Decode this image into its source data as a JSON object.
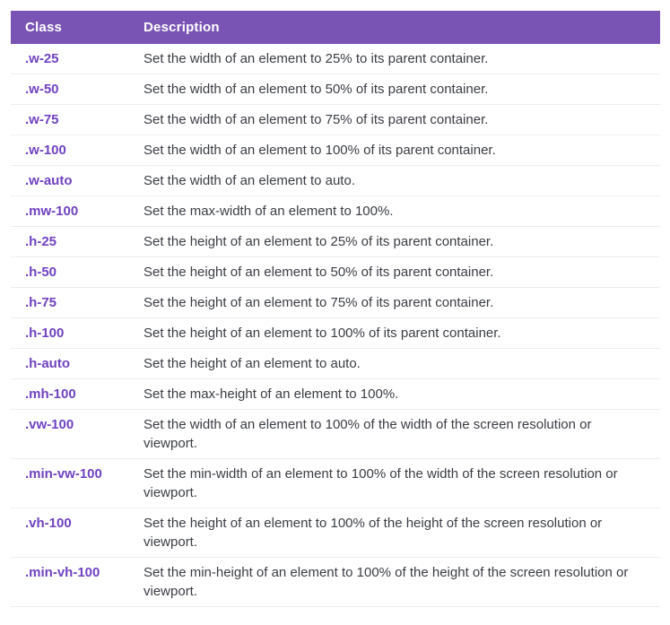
{
  "colors": {
    "header_bg": "#7a54b4",
    "header_text": "#ffffff",
    "class_text": "#6f42c1",
    "description_text": "#3a3d43",
    "divider": "#ebedee"
  },
  "table": {
    "columns": [
      {
        "label": "Class"
      },
      {
        "label": "Description"
      }
    ],
    "rows": [
      {
        "class_name": ".w-25",
        "description": "Set the width of an element to 25% to its parent container."
      },
      {
        "class_name": ".w-50",
        "description": "Set the width of an element to 50% of its parent container."
      },
      {
        "class_name": ".w-75",
        "description": "Set the width of an element to 75% of its parent container."
      },
      {
        "class_name": ".w-100",
        "description": "Set the width of an element to 100% of its parent container."
      },
      {
        "class_name": ".w-auto",
        "description": "Set the width of an element to auto."
      },
      {
        "class_name": ".mw-100",
        "description": "Set the max-width of an element to 100%."
      },
      {
        "class_name": ".h-25",
        "description": "Set the height of an element to 25% of its parent container."
      },
      {
        "class_name": ".h-50",
        "description": "Set the height of an element to 50% of its parent container."
      },
      {
        "class_name": ".h-75",
        "description": "Set the height of an element to 75% of its parent container."
      },
      {
        "class_name": ".h-100",
        "description": "Set the height of an element to 100% of its parent container."
      },
      {
        "class_name": ".h-auto",
        "description": "Set the height of an element to auto."
      },
      {
        "class_name": ".mh-100",
        "description": "Set the max-height of an element to 100%."
      },
      {
        "class_name": ".vw-100",
        "description": "Set the width of an element to 100% of the width of the screen resolution or viewport."
      },
      {
        "class_name": ".min-vw-100",
        "description": "Set the min-width of an element to 100% of the width of the screen resolution or viewport."
      },
      {
        "class_name": ".vh-100",
        "description": "Set the height of an element to 100% of the height of the screen resolution or viewport."
      },
      {
        "class_name": ".min-vh-100",
        "description": "Set the min-height of an element to 100% of the height of the screen resolution or viewport."
      }
    ]
  }
}
